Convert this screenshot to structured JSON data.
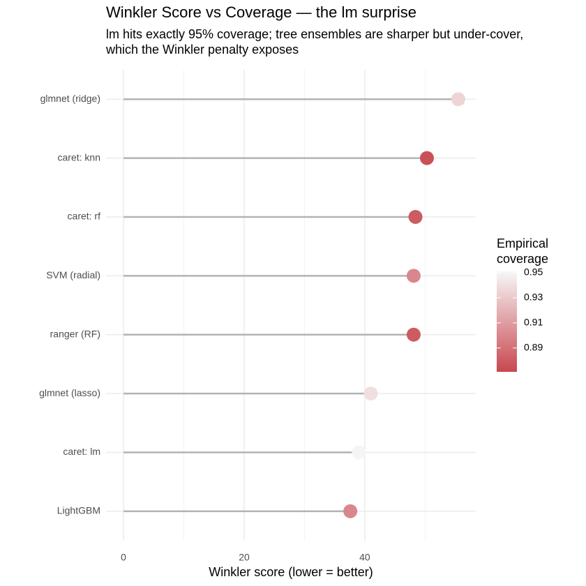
{
  "chart_data": {
    "type": "lollipop",
    "title": "Winkler Score vs Coverage — the lm surprise",
    "subtitle": [
      "lm hits exactly 95% coverage; tree ensembles are sharper but under-cover,",
      "which the Winkler penalty exposes"
    ],
    "x_label": "Winkler score (lower = better)",
    "categories": [
      "glmnet (ridge)",
      "caret: knn",
      "caret: rf",
      "SVM (radial)",
      "ranger (RF)",
      "glmnet (lasso)",
      "caret: lm",
      "LightGBM"
    ],
    "values": [
      55.5,
      50.3,
      48.4,
      48.1,
      48.1,
      41.0,
      39.0,
      37.6
    ],
    "coverage": [
      0.935,
      0.875,
      0.88,
      0.9,
      0.88,
      0.94,
      0.95,
      0.9
    ],
    "xlim": [
      -2.9,
      58.4
    ],
    "xticks": [
      0,
      20,
      40
    ],
    "xminor": [
      10,
      30,
      50
    ],
    "grid": true,
    "segment_color": "#b3b3b3",
    "legend_title": [
      "Empirical",
      "coverage"
    ],
    "color_lim": [
      0.871,
      0.951
    ],
    "color_ticks": [
      0.89,
      0.91,
      0.93,
      0.95
    ],
    "color_low": "#c8474f",
    "color_high": "#f7f7f7"
  }
}
